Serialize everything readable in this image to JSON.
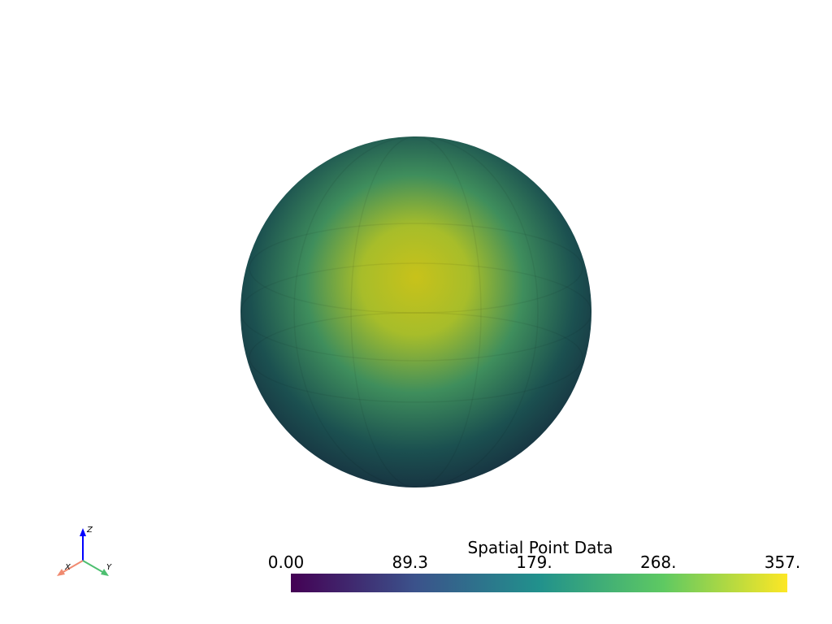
{
  "scalar_bar": {
    "title": "Spatial Point Data",
    "range": [
      0,
      357
    ],
    "ticks": [
      {
        "value": 0,
        "label": "0.00"
      },
      {
        "value": 89.25,
        "label": "89.3"
      },
      {
        "value": 178.5,
        "label": "179."
      },
      {
        "value": 267.75,
        "label": "268."
      },
      {
        "value": 357,
        "label": "357."
      }
    ],
    "colormap": [
      "#440154",
      "#3b528b",
      "#21918c",
      "#5ec962",
      "#fde725"
    ]
  },
  "axes": {
    "x": "X",
    "y": "Y",
    "z": "Z"
  }
}
